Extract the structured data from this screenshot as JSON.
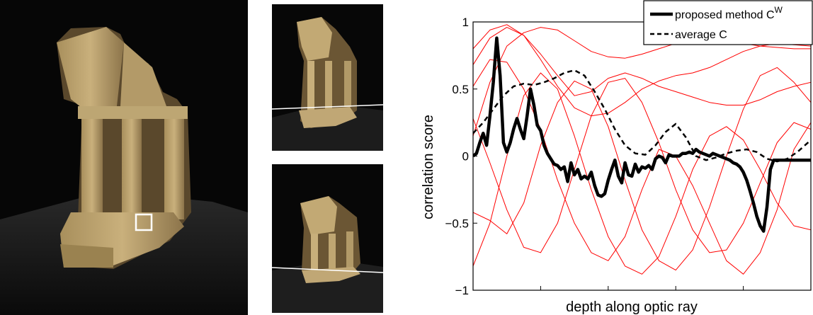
{
  "photos": [
    {
      "name": "temple-reference-view",
      "marker": "reference-patch"
    },
    {
      "name": "temple-second-view",
      "marker": "epipolar-line"
    },
    {
      "name": "temple-third-view",
      "marker": "epipolar-line"
    }
  ],
  "chart_data": {
    "type": "line",
    "title": "",
    "xlabel": "depth along optic ray",
    "ylabel": "correlation score",
    "xlim": [
      0,
      100
    ],
    "ylim": [
      -1,
      1
    ],
    "yticks": [
      -1,
      -0.5,
      0,
      0.5,
      1
    ],
    "ytick_labels": [
      "−1",
      "−0.5",
      "0",
      "0.5",
      "1"
    ],
    "xticks": [
      20,
      40,
      60,
      80
    ],
    "grid": false,
    "legend_position": "top-right",
    "legend": [
      {
        "label": "proposed method C",
        "superscript": "W",
        "style": "solid-thick"
      },
      {
        "label": "average C",
        "style": "dashed"
      }
    ],
    "series": [
      {
        "role": "proposed",
        "color": "#000000",
        "x": [
          0,
          1,
          2,
          3,
          4,
          5,
          6,
          7,
          8,
          9,
          10,
          11,
          12,
          13,
          14,
          15,
          16,
          17,
          18,
          19,
          20,
          21,
          22,
          23,
          24,
          25,
          26,
          27,
          28,
          29,
          30,
          31,
          32,
          33,
          34,
          35,
          36,
          37,
          38,
          39,
          40,
          41,
          42,
          43,
          44,
          45,
          46,
          47,
          48,
          49,
          50,
          51,
          52,
          53,
          54,
          55,
          56,
          57,
          58,
          59,
          60,
          61,
          62,
          63,
          64,
          65,
          66,
          67,
          68,
          69,
          70,
          71,
          72,
          73,
          74,
          75,
          76,
          77,
          78,
          79,
          80,
          81,
          82,
          83,
          84,
          85,
          86,
          87,
          88,
          89,
          90,
          91,
          92,
          93,
          94,
          95,
          96,
          97,
          98,
          99,
          100
        ],
        "y": [
          0.0,
          0.02,
          0.1,
          0.17,
          0.08,
          0.3,
          0.55,
          0.88,
          0.6,
          0.1,
          0.03,
          0.1,
          0.2,
          0.28,
          0.2,
          0.13,
          0.3,
          0.5,
          0.38,
          0.23,
          0.19,
          0.08,
          0.02,
          -0.02,
          -0.06,
          -0.07,
          -0.1,
          -0.08,
          -0.19,
          -0.05,
          -0.14,
          -0.1,
          -0.17,
          -0.15,
          -0.17,
          -0.12,
          -0.22,
          -0.29,
          -0.3,
          -0.28,
          -0.18,
          -0.1,
          -0.03,
          -0.15,
          -0.2,
          -0.05,
          -0.14,
          -0.15,
          -0.06,
          -0.12,
          -0.08,
          -0.09,
          -0.07,
          -0.1,
          -0.02,
          0.0,
          -0.01,
          -0.05,
          0.01,
          0.0,
          0.0,
          0.0,
          0.02,
          0.02,
          0.03,
          0.02,
          0.05,
          0.03,
          0.02,
          0.01,
          0.0,
          0.02,
          0.01,
          0.0,
          -0.01,
          -0.02,
          -0.03,
          -0.05,
          -0.06,
          -0.08,
          -0.12,
          -0.18,
          -0.26,
          -0.35,
          -0.45,
          -0.52,
          -0.56,
          -0.38,
          -0.1,
          -0.03,
          -0.03,
          -0.03,
          -0.03,
          -0.03,
          -0.03,
          -0.03,
          -0.03,
          -0.03,
          -0.03,
          -0.03,
          -0.03
        ]
      },
      {
        "role": "average",
        "color": "#000000",
        "x": [
          0,
          3,
          6,
          9,
          12,
          15,
          18,
          21,
          24,
          27,
          30,
          33,
          36,
          39,
          42,
          45,
          48,
          51,
          54,
          57,
          60,
          63,
          66,
          69,
          72,
          75,
          78,
          81,
          84,
          87,
          90,
          93,
          96,
          100
        ],
        "y": [
          0.17,
          0.25,
          0.35,
          0.45,
          0.52,
          0.54,
          0.53,
          0.55,
          0.58,
          0.62,
          0.64,
          0.6,
          0.48,
          0.35,
          0.2,
          0.08,
          0.02,
          0.01,
          0.08,
          0.18,
          0.24,
          0.14,
          0.0,
          -0.03,
          -0.01,
          0.02,
          0.04,
          0.05,
          0.03,
          -0.02,
          -0.04,
          -0.02,
          0.03,
          0.12
        ]
      },
      {
        "role": "pairwise",
        "color": "#ff0000",
        "x": [
          0,
          5,
          10,
          15,
          20,
          25,
          30,
          35,
          40,
          45,
          50,
          55,
          60,
          65,
          70,
          75,
          80,
          85,
          90,
          95,
          100
        ],
        "y": [
          0.15,
          0.55,
          0.82,
          0.92,
          0.96,
          0.94,
          0.86,
          0.78,
          0.74,
          0.73,
          0.76,
          0.8,
          0.84,
          0.87,
          0.88,
          0.86,
          0.84,
          0.82,
          0.81,
          0.8,
          0.8
        ]
      },
      {
        "role": "pairwise",
        "color": "#ff0000",
        "x": [
          0,
          5,
          10,
          15,
          20,
          25,
          30,
          35,
          40,
          45,
          50,
          55,
          60,
          65,
          70,
          75,
          80,
          85,
          90,
          95,
          100
        ],
        "y": [
          0.68,
          0.88,
          0.96,
          0.9,
          0.76,
          0.6,
          0.45,
          0.48,
          0.58,
          0.62,
          0.58,
          0.52,
          0.48,
          0.44,
          0.4,
          0.38,
          0.38,
          0.42,
          0.48,
          0.52,
          0.55
        ]
      },
      {
        "role": "pairwise",
        "color": "#ff0000",
        "x": [
          0,
          5,
          10,
          15,
          20,
          25,
          30,
          35,
          40,
          45,
          50,
          55,
          60,
          65,
          70,
          75,
          80,
          85,
          90,
          95,
          100
        ],
        "y": [
          0.8,
          0.94,
          0.98,
          0.9,
          0.72,
          0.52,
          0.36,
          0.3,
          0.32,
          0.4,
          0.5,
          0.56,
          0.6,
          0.62,
          0.66,
          0.72,
          0.78,
          0.82,
          0.84,
          0.83,
          0.82
        ]
      },
      {
        "role": "pairwise",
        "color": "#ff0000",
        "x": [
          0,
          5,
          10,
          15,
          20,
          25,
          30,
          35,
          40,
          45,
          50,
          55,
          60,
          65,
          70,
          75,
          80,
          85,
          90,
          95,
          100
        ],
        "y": [
          -0.42,
          -0.48,
          -0.58,
          -0.35,
          0.08,
          0.4,
          0.56,
          0.5,
          0.22,
          -0.18,
          -0.55,
          -0.78,
          -0.85,
          -0.7,
          -0.38,
          0.0,
          0.35,
          0.6,
          0.66,
          0.55,
          0.4
        ]
      },
      {
        "role": "pairwise",
        "color": "#ff0000",
        "x": [
          0,
          5,
          10,
          15,
          20,
          25,
          30,
          35,
          40,
          45,
          50,
          55,
          60,
          65,
          70,
          75,
          80,
          85,
          90,
          95,
          100
        ],
        "y": [
          0.28,
          -0.05,
          -0.4,
          -0.68,
          -0.72,
          -0.5,
          -0.1,
          0.3,
          0.55,
          0.58,
          0.4,
          0.1,
          -0.25,
          -0.55,
          -0.72,
          -0.7,
          -0.5,
          -0.2,
          0.1,
          0.25,
          0.2
        ]
      },
      {
        "role": "pairwise",
        "color": "#ff0000",
        "x": [
          0,
          5,
          10,
          15,
          20,
          25,
          30,
          35,
          40,
          45,
          50,
          55,
          60,
          65,
          70,
          75,
          80,
          85,
          90,
          95,
          100
        ],
        "y": [
          -0.82,
          -0.5,
          0.0,
          0.45,
          0.62,
          0.5,
          0.15,
          -0.25,
          -0.6,
          -0.82,
          -0.88,
          -0.75,
          -0.45,
          -0.1,
          0.15,
          0.22,
          0.12,
          -0.1,
          -0.35,
          -0.52,
          -0.55
        ]
      },
      {
        "role": "pairwise",
        "color": "#ff0000",
        "x": [
          0,
          5,
          10,
          15,
          20,
          25,
          30,
          35,
          40,
          45,
          50,
          55,
          60,
          65,
          70,
          75,
          80,
          85,
          90,
          95,
          100
        ],
        "y": [
          0.52,
          0.72,
          0.7,
          0.5,
          0.2,
          -0.18,
          -0.5,
          -0.72,
          -0.78,
          -0.6,
          -0.25,
          0.05,
          0.0,
          -0.22,
          -0.5,
          -0.78,
          -0.88,
          -0.72,
          -0.4,
          0.05,
          0.25
        ]
      }
    ]
  }
}
